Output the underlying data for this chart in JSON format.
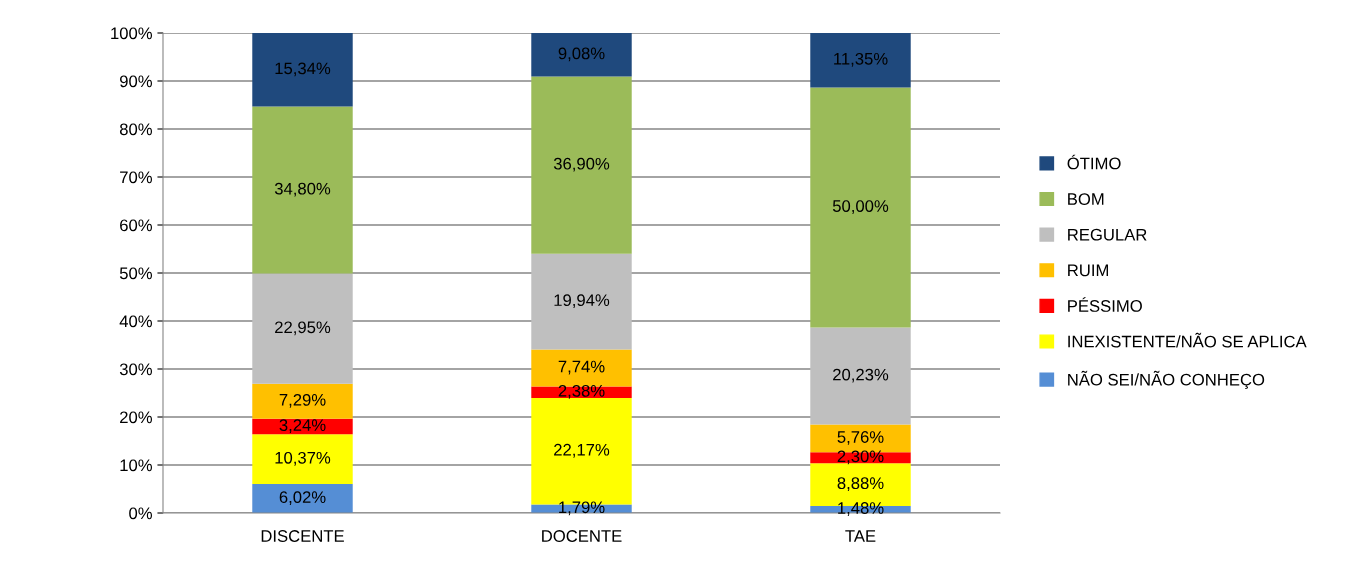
{
  "chart_data": {
    "type": "bar",
    "stacked": true,
    "categories": [
      "DISCENTE",
      "DOCENTE",
      "TAE"
    ],
    "series": [
      {
        "name": "NÃO SEI/NÃO CONHEÇO",
        "color": "#558ed5",
        "values": [
          6.02,
          1.79,
          1.48
        ],
        "value_labels": [
          "6,02%",
          "1,79%",
          "1,48%"
        ]
      },
      {
        "name": "INEXISTENTE/NÃO SE APLICA",
        "color": "#ffff00",
        "values": [
          10.37,
          22.17,
          8.88
        ],
        "value_labels": [
          "10,37%",
          "22,17%",
          "8,88%"
        ]
      },
      {
        "name": "PÉSSIMO",
        "color": "#ff0000",
        "values": [
          3.24,
          2.38,
          2.3
        ],
        "value_labels": [
          "3,24%",
          "2,38%",
          "2,30%"
        ]
      },
      {
        "name": "RUIM",
        "color": "#ffc000",
        "values": [
          7.29,
          7.74,
          5.76
        ],
        "value_labels": [
          "7,29%",
          "7,74%",
          "5,76%"
        ]
      },
      {
        "name": "REGULAR",
        "color": "#bfbfbf",
        "values": [
          22.95,
          19.94,
          20.23
        ],
        "value_labels": [
          "22,95%",
          "19,94%",
          "20,23%"
        ]
      },
      {
        "name": "BOM",
        "color": "#9bbb59",
        "values": [
          34.8,
          36.9,
          50.0
        ],
        "value_labels": [
          "34,80%",
          "36,90%",
          "50,00%"
        ]
      },
      {
        "name": "ÓTIMO",
        "color": "#1f497d",
        "values": [
          15.34,
          9.08,
          11.35
        ],
        "value_labels": [
          "15,34%",
          "9,08%",
          "11,35%"
        ]
      }
    ],
    "ylim": [
      0,
      100
    ],
    "yticks": [
      {
        "value": 0,
        "label": "0%"
      },
      {
        "value": 10,
        "label": "10%"
      },
      {
        "value": 20,
        "label": "20%"
      },
      {
        "value": 30,
        "label": "30%"
      },
      {
        "value": 40,
        "label": "40%"
      },
      {
        "value": 50,
        "label": "50%"
      },
      {
        "value": 60,
        "label": "60%"
      },
      {
        "value": 70,
        "label": "70%"
      },
      {
        "value": 80,
        "label": "80%"
      },
      {
        "value": 90,
        "label": "90%"
      },
      {
        "value": 100,
        "label": "100%"
      }
    ],
    "grid": "y",
    "legend": "right"
  }
}
